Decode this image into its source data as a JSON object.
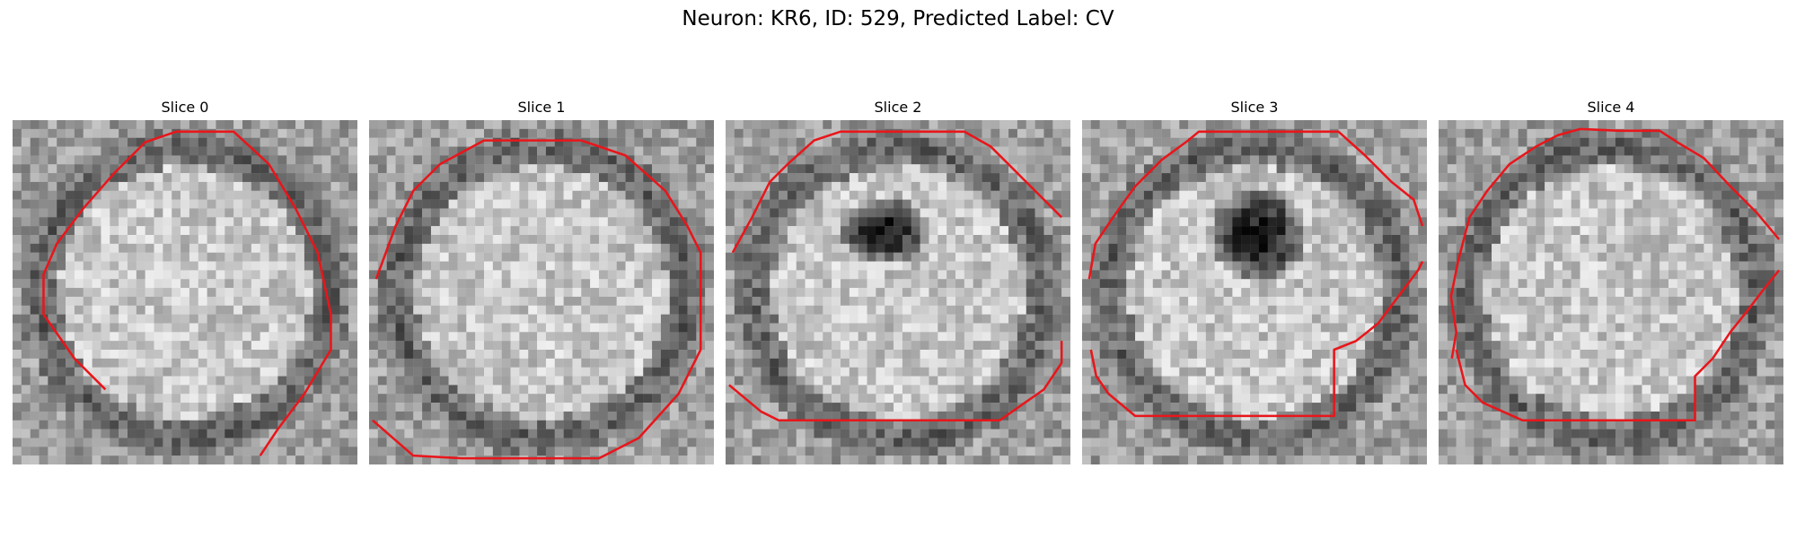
{
  "figure": {
    "title": "Neuron: KR6, ID: 529, Predicted Label: CV"
  },
  "panels": [
    {
      "title": "Slice 0",
      "contour_color": "#e8161b",
      "contour": [
        [
          10.5,
          30.5
        ],
        [
          7,
          27
        ],
        [
          3.5,
          22
        ],
        [
          3.5,
          17.5
        ],
        [
          5,
          14
        ],
        [
          8,
          10
        ],
        [
          11.5,
          6
        ],
        [
          15,
          2.5
        ],
        [
          18.5,
          1.3
        ],
        [
          25,
          1.3
        ],
        [
          29,
          5
        ],
        [
          32,
          10
        ],
        [
          34.5,
          15
        ],
        [
          36,
          22
        ],
        [
          36,
          26
        ],
        [
          33,
          31
        ],
        [
          30,
          35
        ],
        [
          28,
          38
        ]
      ],
      "dark_blob": null
    },
    {
      "title": "Slice 1",
      "contour_color": "#e8161b",
      "contour": [
        [
          0.4,
          34
        ],
        [
          5,
          38
        ],
        [
          10.5,
          38.3
        ],
        [
          26,
          38.3
        ],
        [
          30.5,
          36
        ],
        [
          35,
          31
        ],
        [
          37.5,
          26
        ],
        [
          37.5,
          15
        ],
        [
          36,
          12
        ],
        [
          33.5,
          8
        ],
        [
          29,
          4
        ],
        [
          24,
          2.3
        ],
        [
          13,
          2.3
        ],
        [
          8,
          5
        ],
        [
          5,
          8
        ],
        [
          3,
          12
        ],
        [
          0.8,
          18
        ]
      ],
      "dark_blob": null
    },
    {
      "title": "Slice 2",
      "contour_color": "#e8161b",
      "contour": [
        [
          0.4,
          30
        ],
        [
          4,
          33
        ],
        [
          6,
          34
        ],
        [
          31,
          34
        ],
        [
          36,
          30.5
        ],
        [
          38,
          27.5
        ],
        [
          38,
          25
        ]
      ],
      "contour_2": [
        [
          0.8,
          15
        ],
        [
          3,
          11
        ],
        [
          5,
          7
        ],
        [
          7,
          5
        ],
        [
          10,
          2.3
        ],
        [
          13,
          1.3
        ],
        [
          27,
          1.3
        ],
        [
          30,
          3
        ],
        [
          33,
          6
        ],
        [
          36,
          9
        ],
        [
          38,
          11
        ]
      ],
      "dark_blob": {
        "cx": 18,
        "cy": 12.5,
        "rx": 5.2,
        "ry": 3.8
      }
    },
    {
      "title": "Slice 3",
      "contour_color": "#e8161b",
      "contour": [
        [
          0.8,
          18
        ],
        [
          1.5,
          14
        ],
        [
          3.5,
          11
        ],
        [
          6,
          7.5
        ],
        [
          9,
          4.5
        ],
        [
          12,
          2.3
        ],
        [
          13.2,
          1.3
        ],
        [
          29,
          1.3
        ],
        [
          32,
          4
        ],
        [
          35,
          7
        ],
        [
          37.5,
          9
        ],
        [
          38.5,
          12
        ]
      ],
      "contour_2": [
        [
          1,
          26
        ],
        [
          1.6,
          29
        ],
        [
          3,
          31
        ],
        [
          6,
          33.5
        ],
        [
          28.5,
          33.5
        ],
        [
          28.5,
          26
        ],
        [
          31,
          25
        ],
        [
          33.5,
          23
        ],
        [
          35,
          21
        ],
        [
          36.5,
          19
        ],
        [
          38,
          17
        ],
        [
          38.5,
          16
        ]
      ],
      "dark_blob": {
        "cx": 20,
        "cy": 13,
        "rx": 5.5,
        "ry": 5.5
      }
    },
    {
      "title": "Slice 4",
      "contour_color": "#e8161b",
      "contour": [
        [
          1.5,
          27
        ],
        [
          2,
          24
        ],
        [
          1.4,
          20
        ],
        [
          2.2,
          16
        ],
        [
          3.5,
          11
        ],
        [
          5.5,
          8
        ],
        [
          8,
          5
        ],
        [
          11,
          3
        ],
        [
          13.5,
          1.7
        ],
        [
          16,
          1
        ],
        [
          20.5,
          1.2
        ],
        [
          25,
          1.2
        ],
        [
          27,
          2.5
        ],
        [
          30,
          4.3
        ],
        [
          33,
          7.5
        ],
        [
          36,
          10.5
        ],
        [
          38.5,
          13.5
        ]
      ],
      "contour_2": [
        [
          2,
          26
        ],
        [
          3,
          30
        ],
        [
          5,
          32
        ],
        [
          9.5,
          34
        ],
        [
          29,
          34
        ],
        [
          29,
          29
        ],
        [
          31,
          27
        ],
        [
          33,
          24
        ],
        [
          35,
          21.5
        ],
        [
          36.5,
          19.5
        ],
        [
          38.5,
          17
        ]
      ],
      "dark_blob": null
    }
  ]
}
